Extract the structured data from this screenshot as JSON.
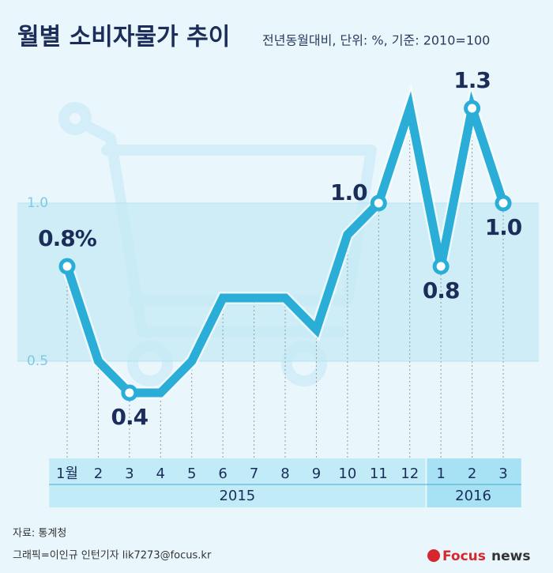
{
  "chart_data": {
    "type": "line",
    "title": "월별 소비자물가 추이",
    "subtitle": "전년동월대비, 단위: %, 기준: 2010=100",
    "categories": [
      "1월",
      "2",
      "3",
      "4",
      "5",
      "6",
      "7",
      "8",
      "9",
      "10",
      "11",
      "12",
      "1",
      "2",
      "3"
    ],
    "year_groups": [
      {
        "name": "2015",
        "count": 12
      },
      {
        "name": "2016",
        "count": 3
      }
    ],
    "series": [
      {
        "color": "#2aaed8",
        "values": [
          0.8,
          0.5,
          0.4,
          0.4,
          0.5,
          0.7,
          0.7,
          0.7,
          0.6,
          0.9,
          1.0,
          1.3,
          0.8,
          1.3,
          1.0
        ],
        "value_labels": [
          "0.8%",
          null,
          "0.4",
          null,
          null,
          null,
          null,
          null,
          null,
          null,
          "1.0",
          null,
          "0.8",
          "1.3",
          "1.0"
        ]
      }
    ],
    "ylim": [
      0.2,
      1.35
    ],
    "yticks": [
      {
        "value": 0.5,
        "label": "0.5"
      },
      {
        "value": 1,
        "label": "1.0"
      }
    ],
    "source": "자료: 통계청",
    "credit": "그래픽=이인규 인턴기자 lik7273@focus.kr",
    "logo": {
      "brand": "Focus",
      "suffix": "news"
    }
  }
}
